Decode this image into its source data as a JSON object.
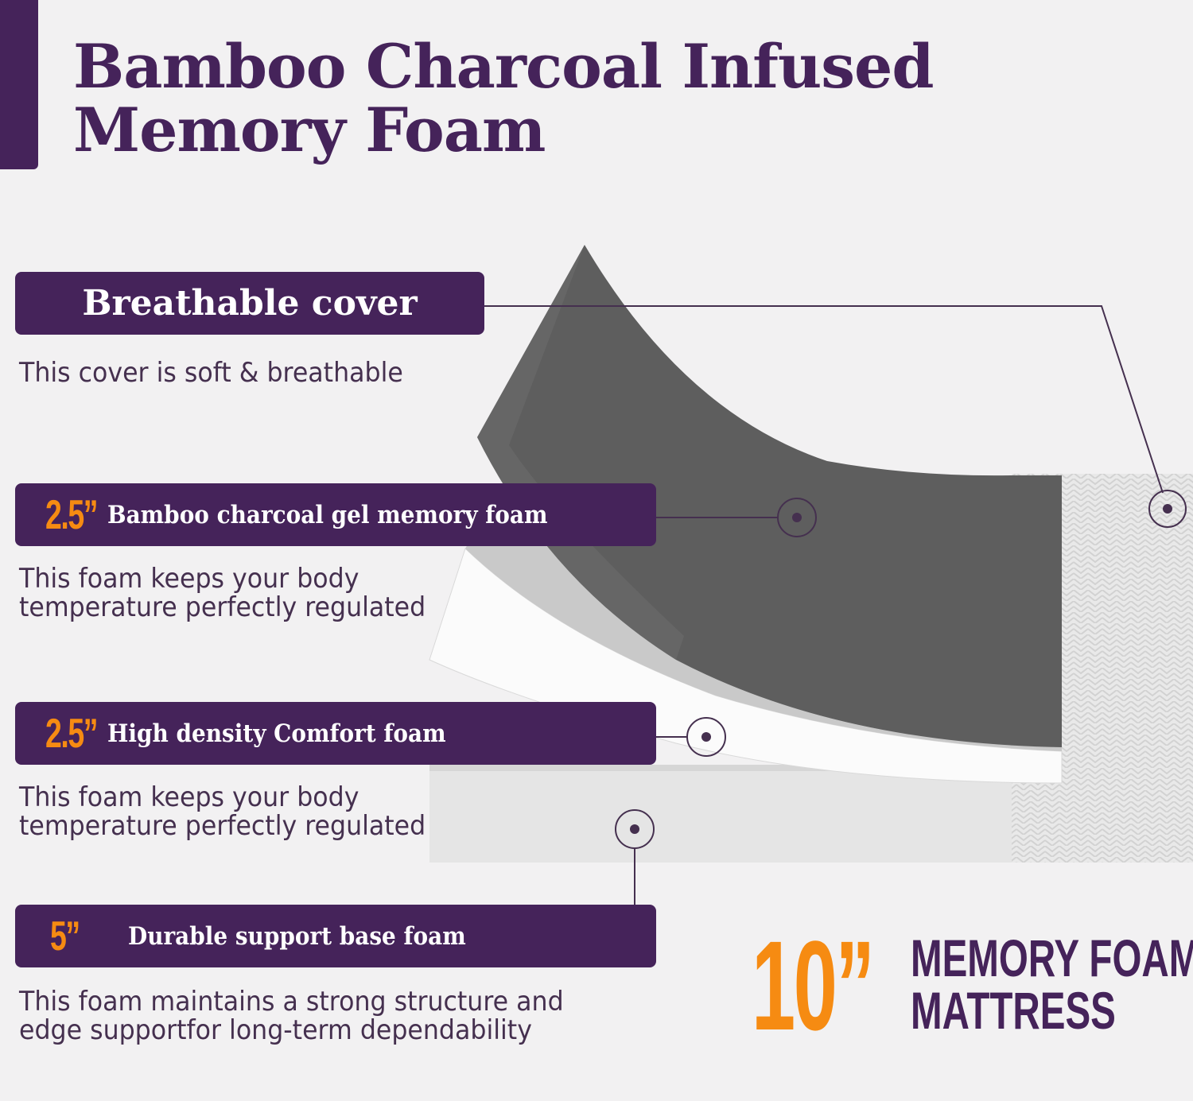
{
  "title": {
    "line1": "Bamboo Charcoal Infused",
    "line2": "Memory Foam"
  },
  "layers": [
    {
      "size": "",
      "label": "Breathable cover",
      "description": "This cover is soft & breathable"
    },
    {
      "size": "2.5”",
      "label": "Bamboo charcoal gel  memory foam",
      "description": "This foam keeps your body\ntemperature perfectly regulated"
    },
    {
      "size": "2.5”",
      "label": "High density Comfort foam",
      "description": "This foam keeps your body\ntemperature perfectly regulated"
    },
    {
      "size": "5”",
      "label": "Durable support base foam",
      "description": "This foam maintains a strong structure and\nedge supportfor long-term dependability"
    }
  ],
  "total": {
    "size": "10”",
    "line1": "MEMORY FOAM",
    "line2": "MATTRESS"
  },
  "colors": {
    "purple": "#45235a",
    "orange": "#f68b12",
    "background": "#f2f1f2",
    "charcoal_foam": "#5f5f5f"
  }
}
